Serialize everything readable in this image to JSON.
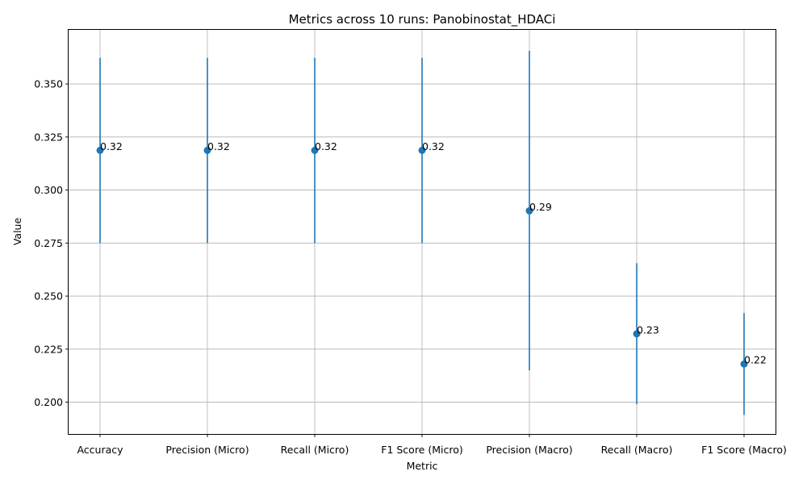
{
  "chart_data": {
    "type": "scatter",
    "title": "Metrics across 10 runs: Panobinostat_HDACi",
    "xlabel": "Metric",
    "ylabel": "Value",
    "categories": [
      "Accuracy",
      "Precision (Micro)",
      "Recall (Micro)",
      "F1 Score (Micro)",
      "Precision (Macro)",
      "Recall (Macro)",
      "F1 Score (Macro)"
    ],
    "values": [
      0.3187,
      0.3187,
      0.3187,
      0.3187,
      0.2902,
      0.2322,
      0.218
    ],
    "error_low": [
      0.275,
      0.275,
      0.275,
      0.275,
      0.215,
      0.199,
      0.194
    ],
    "error_high": [
      0.3623,
      0.3623,
      0.3623,
      0.3623,
      0.3656,
      0.2655,
      0.242
    ],
    "data_labels": [
      "0.32",
      "0.32",
      "0.32",
      "0.32",
      "0.29",
      "0.23",
      "0.22"
    ],
    "ylim": [
      0.185,
      0.3755
    ],
    "yticks": [
      "0.200",
      "0.225",
      "0.250",
      "0.275",
      "0.300",
      "0.325",
      "0.350"
    ],
    "grid": true,
    "marker_color": "#1f77b4"
  }
}
